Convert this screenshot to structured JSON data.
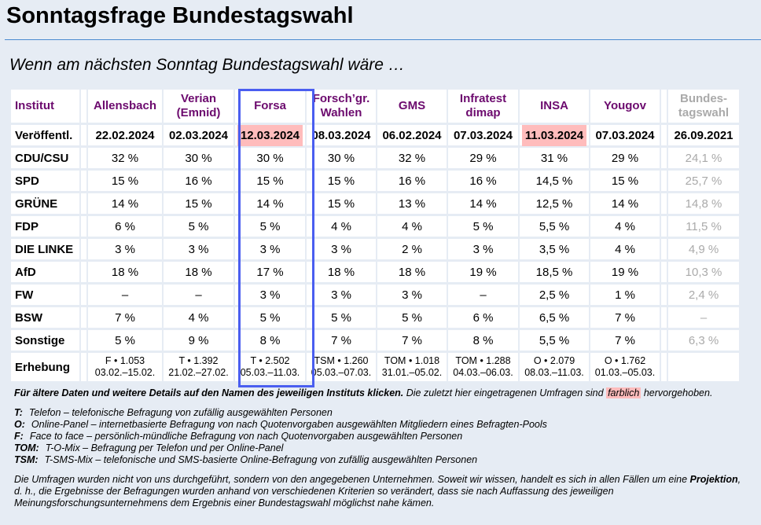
{
  "title": "Sonntagsfrage Bundestagswahl",
  "subtitle": "Wenn am nächsten Sonntag Bundestagswahl wäre …",
  "table": {
    "institut_label": "Institut",
    "published_label": "Veröffentl.",
    "survey_label": "Erhebung",
    "institutes": [
      {
        "name": "Allensbach",
        "date": "22.02.2024",
        "highlight": false,
        "survey": "F • 1.053",
        "period": "03.02.–15.02.",
        "values": [
          "32 %",
          "15 %",
          "14 %",
          "6 %",
          "3 %",
          "18 %",
          "–",
          "7 %",
          "5 %"
        ]
      },
      {
        "name": "Verian (Emnid)",
        "date": "02.03.2024",
        "highlight": false,
        "survey": "T • 1.392",
        "period": "21.02.–27.02.",
        "values": [
          "30 %",
          "16 %",
          "15 %",
          "5 %",
          "3 %",
          "18 %",
          "–",
          "4 %",
          "9 %"
        ]
      },
      {
        "name": "Forsa",
        "date": "12.03.2024",
        "highlight": true,
        "survey": "T • 2.502",
        "period": "05.03.–11.03.",
        "values": [
          "30 %",
          "15 %",
          "14 %",
          "5 %",
          "3 %",
          "17 %",
          "3 %",
          "5 %",
          "8 %"
        ]
      },
      {
        "name": "Forsch’gr. Wahlen",
        "date": "08.03.2024",
        "highlight": false,
        "survey": "TSM • 1.260",
        "period": "05.03.–07.03.",
        "values": [
          "30 %",
          "15 %",
          "15 %",
          "4 %",
          "3 %",
          "18 %",
          "3 %",
          "5 %",
          "7 %"
        ]
      },
      {
        "name": "GMS",
        "date": "06.02.2024",
        "highlight": false,
        "survey": "TOM • 1.018",
        "period": "31.01.–05.02.",
        "values": [
          "32 %",
          "16 %",
          "13 %",
          "4 %",
          "2 %",
          "18 %",
          "3 %",
          "5 %",
          "7 %"
        ]
      },
      {
        "name": "Infratest dimap",
        "date": "07.03.2024",
        "highlight": false,
        "survey": "TOM • 1.288",
        "period": "04.03.–06.03.",
        "values": [
          "29 %",
          "16 %",
          "14 %",
          "5 %",
          "3 %",
          "19 %",
          "–",
          "6 %",
          "8 %"
        ]
      },
      {
        "name": "INSA",
        "date": "11.03.2024",
        "highlight": true,
        "survey": "O • 2.079",
        "period": "08.03.–11.03.",
        "values": [
          "31 %",
          "14,5 %",
          "12,5 %",
          "5,5 %",
          "3,5 %",
          "18,5 %",
          "2,5 %",
          "6,5 %",
          "5,5 %"
        ]
      },
      {
        "name": "Yougov",
        "date": "07.03.2024",
        "highlight": false,
        "survey": "O • 1.762",
        "period": "01.03.–05.03.",
        "values": [
          "29 %",
          "15 %",
          "14 %",
          "4 %",
          "4 %",
          "19 %",
          "1 %",
          "7 %",
          "7 %"
        ]
      }
    ],
    "election": {
      "name": "Bundes- tagswahl",
      "date": "26.09.2021",
      "values": [
        "24,1 %",
        "25,7 %",
        "14,8 %",
        "11,5 %",
        "4,9 %",
        "10,3 %",
        "2,4 %",
        "–",
        "6,3 %"
      ]
    },
    "parties": [
      "CDU/CSU",
      "SPD",
      "GRÜNE",
      "FDP",
      "DIE LINKE",
      "AfD",
      "FW",
      "BSW",
      "Sonstige"
    ]
  },
  "notes": {
    "older_bold": "Für ältere Daten und weitere Details auf den Namen des jeweiligen Instituts klicken.",
    "older_rest": " Die zuletzt hier eingetragenen Umfragen sind ",
    "farblich": "farblich",
    "older_end": " hervorgehoben.",
    "legend": [
      {
        "key": "T:",
        "text": "Telefon – telefonische Befragung von zufällig ausgewählten Personen"
      },
      {
        "key": "O:",
        "text": "Online-Panel – internetbasierte Befragung von nach Quotenvorgaben ausgewählten Mitgliedern eines Befragten-Pools"
      },
      {
        "key": "F:",
        "text": "Face to face – persönlich-mündliche Befragung von nach Quotenvorgaben ausgewählten Personen"
      },
      {
        "key": "TOM:",
        "text": "T-O-Mix – Befragung per Telefon und per Online-Panel"
      },
      {
        "key": "TSM:",
        "text": "T-SMS-Mix – telefonische und SMS-basierte Online-Befragung von zufällig ausgewählten Personen"
      }
    ],
    "disclaimer_a": "Die Umfragen wurden nicht von uns durchgeführt, sondern von den angegebenen Unternehmen. Soweit wir wissen, handelt es sich in allen Fällen um eine ",
    "disclaimer_bold": "Projektion",
    "disclaimer_b": ", d. h., die Ergebnisse der Befragungen wurden anhand von verschiedenen Kriterien so verändert, dass sie nach Auffassung des jeweiligen Meinungsforschungsunternehmens dem Ergebnis einer Bundestagswahl möglichst nahe kämen."
  }
}
